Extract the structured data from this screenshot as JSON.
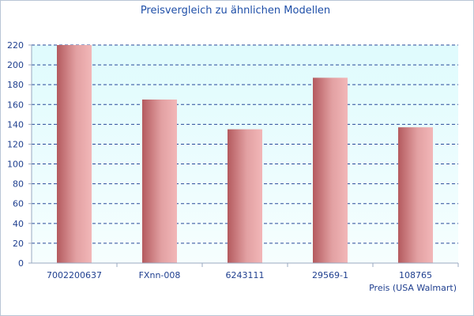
{
  "chart_data": {
    "type": "bar",
    "title": "Preisvergleich zu ähnlichen Modellen",
    "xlabel": "Preis (USA Walmart)",
    "ylabel": "",
    "categories": [
      "7002200637",
      "FXnn-008",
      "6243111",
      "29569-1",
      "108765"
    ],
    "values": [
      220,
      165,
      135,
      187,
      137
    ],
    "ylim": [
      0,
      220
    ],
    "yticks": [
      0,
      20,
      40,
      60,
      80,
      100,
      120,
      140,
      160,
      180,
      200,
      220
    ],
    "grid": true,
    "legend": "none",
    "colors": {
      "title": "#1f4fa8",
      "axis_text": "#1f3f8f",
      "grid": "#2a4a9a",
      "plot_bg_top": "#dffbfd",
      "plot_bg_bottom": "#f6fefe",
      "bar_dark": "#b45a5e",
      "bar_light": "#f2b7b8"
    }
  }
}
